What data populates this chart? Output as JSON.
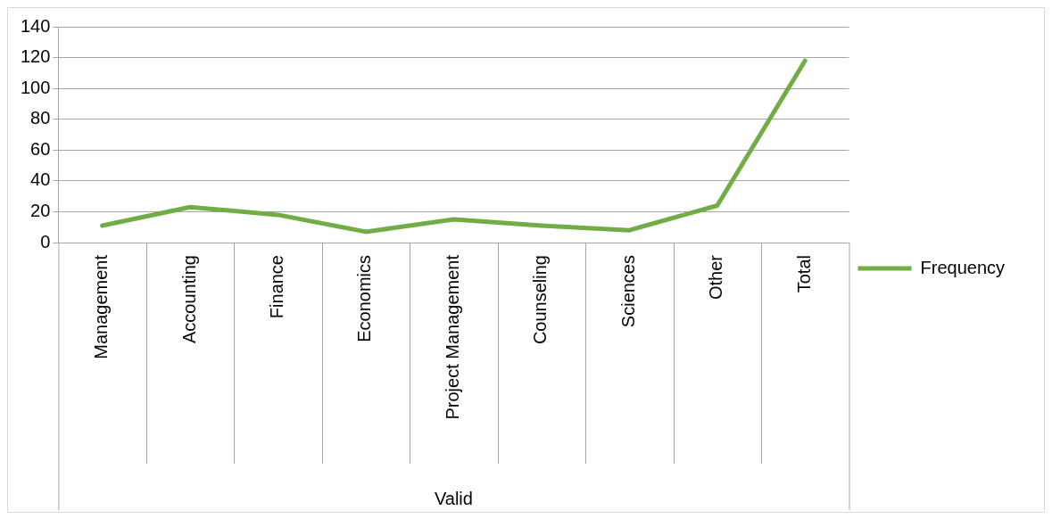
{
  "chart_data": {
    "type": "line",
    "xlabel": "Valid",
    "categories": [
      "Management",
      "Accounting",
      "Finance",
      "Economics",
      "Project Management",
      "Counseling",
      "Sciences",
      "Other",
      "Total"
    ],
    "series": [
      {
        "name": "Frequency",
        "color": "#70ad47",
        "values": [
          11,
          23,
          18,
          7,
          15,
          11,
          8,
          24,
          118
        ]
      }
    ],
    "ylim": [
      0,
      140
    ],
    "yticks": [
      0,
      20,
      40,
      60,
      80,
      100,
      120,
      140
    ],
    "grid": "y",
    "legend": "right",
    "marker": "none",
    "line_style": "solid"
  }
}
